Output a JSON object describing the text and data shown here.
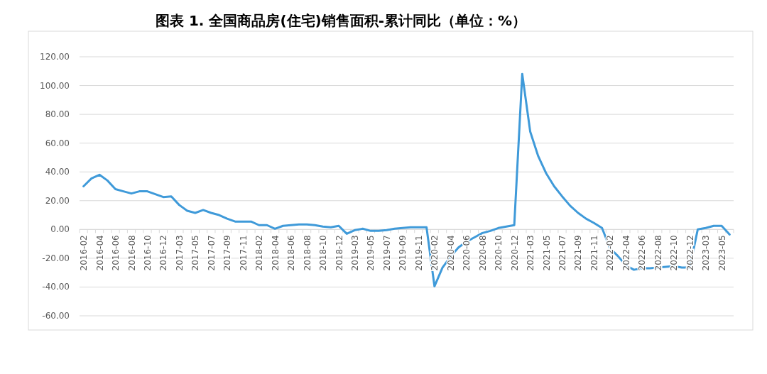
{
  "chart_data": {
    "type": "line",
    "title": "图表 1.  全国商品房(住宅)销售面积-累计同比（单位：%）",
    "categories": [
      "2016-02",
      null,
      "2016-04",
      null,
      "2016-06",
      null,
      "2016-08",
      null,
      "2016-10",
      null,
      "2016-12",
      null,
      "2017-03",
      null,
      "2017-05",
      null,
      "2017-07",
      null,
      "2017-09",
      null,
      "2017-11",
      null,
      "2018-02",
      null,
      "2018-04",
      null,
      "2018-06",
      null,
      "2018-08",
      null,
      "2018-10",
      null,
      "2018-12",
      null,
      "2019-03",
      null,
      "2019-05",
      null,
      "2019-07",
      null,
      "2019-09",
      null,
      "2019-11",
      null,
      "2020-02",
      null,
      "2020-04",
      null,
      "2020-06",
      null,
      "2020-08",
      null,
      "2020-10",
      null,
      "2020-12",
      null,
      "2021-03",
      null,
      "2021-05",
      null,
      "2021-07",
      null,
      "2021-09",
      null,
      "2021-11",
      null,
      "2022-02",
      null,
      "2022-04",
      null,
      "2022-06",
      null,
      "2022-08",
      null,
      "2022-10",
      null,
      "2022-12",
      null,
      "2023-03",
      null,
      "2023-05",
      null
    ],
    "values": [
      30,
      35.5,
      38,
      34,
      28,
      26.5,
      25,
      26.5,
      26.5,
      24.5,
      22.5,
      23,
      17,
      13,
      11.5,
      13.5,
      11.5,
      10,
      7.5,
      5.5,
      5.5,
      5.5,
      3,
      3,
      0.5,
      2.5,
      3,
      3.5,
      3.5,
      3,
      2,
      1.5,
      2.5,
      -3,
      -0.5,
      0.5,
      -1,
      -1,
      -0.5,
      0.5,
      1,
      1.5,
      1.5,
      1.5,
      -39.5,
      -26.5,
      -19,
      -12.5,
      -8.5,
      -5.5,
      -2.5,
      -1,
      1,
      2,
      3,
      108,
      68,
      51,
      39,
      30,
      23,
      16.5,
      11.5,
      7.5,
      4.5,
      1,
      -13,
      -18.5,
      -25,
      -28,
      -27,
      -27,
      -26.5,
      -26,
      -25.5,
      -26.5,
      -26.5,
      0,
      1,
      2.5,
      2.5,
      -3.5
    ],
    "color": "#3f9ad9",
    "ylim": [
      -60,
      120
    ],
    "yticks": [
      {
        "value": -60,
        "label": "-60.00"
      },
      {
        "value": -40,
        "label": "-40.00"
      },
      {
        "value": -20,
        "label": "-20.00"
      },
      {
        "value": 0,
        "label": "0.00"
      },
      {
        "value": 20,
        "label": "20.00"
      },
      {
        "value": 40,
        "label": "40.00"
      },
      {
        "value": 60,
        "label": "60.00"
      },
      {
        "value": 80,
        "label": "80.00"
      },
      {
        "value": 100,
        "label": "100.00"
      },
      {
        "value": 120,
        "label": "120.00"
      }
    ],
    "grid": "y"
  }
}
